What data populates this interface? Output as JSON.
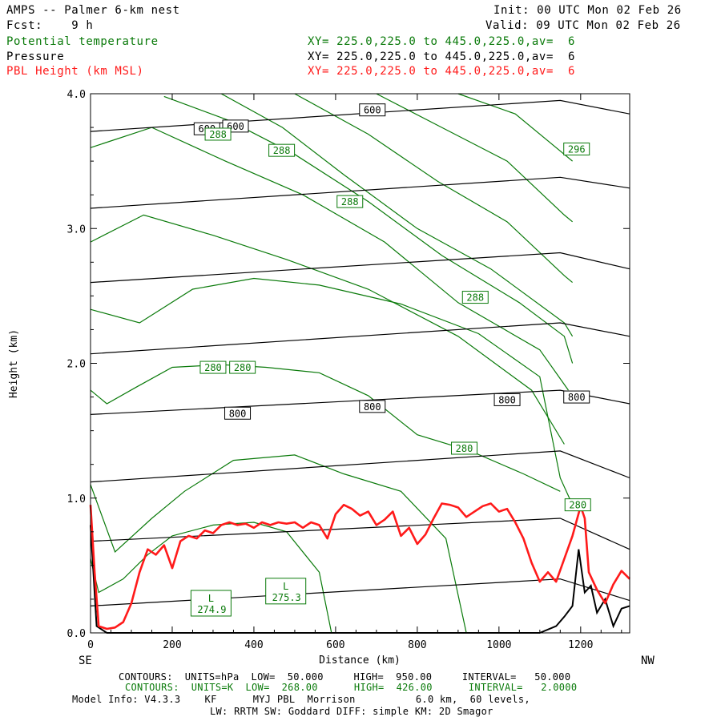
{
  "header": {
    "title": "AMPS -- Palmer 6-km nest",
    "fcst": "Fcst:    9 h",
    "init": "Init: 00 UTC Mon 02 Feb 26",
    "valid": "Valid: 09 UTC Mon 02 Feb 26"
  },
  "fields": [
    {
      "name": "Potential temperature",
      "xy": "XY= 225.0,225.0 to 445.0,225.0,av=  6",
      "color": "#0a7a0a"
    },
    {
      "name": "Pressure",
      "xy": "XY= 225.0,225.0 to 445.0,225.0,av=  6",
      "color": "#000000"
    },
    {
      "name": "PBL Height (km MSL)",
      "xy": "XY= 225.0,225.0 to 445.0,225.0,av=  6",
      "color": "#ff1a1a"
    }
  ],
  "footer": {
    "line1": "CONTOURS:  UNITS=hPa  LOW=  50.000     HIGH=  950.00     INTERVAL=   50.000",
    "line2": "CONTOURS:  UNITS=K  LOW=  268.00      HIGH=  426.00      INTERVAL=   2.0000",
    "line3": "Model Info: V4.3.3    KF      MYJ PBL  Morrison          6.0 km,  60 levels,",
    "line4": "LW: RRTM SW: Goddard DIFF: simple KM: 2D Smagor"
  },
  "chart_data": {
    "type": "line",
    "xlabel": "Distance (km)",
    "ylabel": "Height (km)",
    "xlim": [
      0,
      1320
    ],
    "ylim": [
      0,
      4.0
    ],
    "x_ticks": [
      0,
      200,
      400,
      600,
      800,
      1000,
      1200
    ],
    "x_tick_labels": [
      "0",
      "200",
      "400",
      "600",
      "800",
      "1000",
      "1200"
    ],
    "y_ticks": [
      0,
      1,
      2,
      3,
      4
    ],
    "y_tick_labels": [
      "0.0",
      "1.0",
      "2.0",
      "3.0",
      "4.0"
    ],
    "left_end_label": "SE",
    "right_end_label": "NW",
    "pressure_lines": [
      {
        "x": [
          0,
          1150,
          1320
        ],
        "y": [
          0.2,
          0.4,
          0.24
        ]
      },
      {
        "x": [
          0,
          1150,
          1320
        ],
        "y": [
          0.68,
          0.85,
          0.62
        ]
      },
      {
        "x": [
          0,
          1150,
          1320
        ],
        "y": [
          1.12,
          1.35,
          1.15
        ]
      },
      {
        "x": [
          0,
          1150,
          1320
        ],
        "y": [
          1.62,
          1.8,
          1.7
        ]
      },
      {
        "x": [
          0,
          1150,
          1320
        ],
        "y": [
          2.07,
          2.3,
          2.2
        ]
      },
      {
        "x": [
          0,
          1150,
          1320
        ],
        "y": [
          2.6,
          2.82,
          2.7
        ]
      },
      {
        "x": [
          0,
          1150,
          1320
        ],
        "y": [
          3.15,
          3.38,
          3.3
        ]
      },
      {
        "x": [
          0,
          1150,
          1320
        ],
        "y": [
          3.72,
          3.95,
          3.85
        ]
      }
    ],
    "pressure_labels": [
      {
        "text": "600",
        "x": 285,
        "y": 3.74
      },
      {
        "text": "600",
        "x": 355,
        "y": 3.76
      },
      {
        "text": "600",
        "x": 690,
        "y": 3.88
      },
      {
        "text": "800",
        "x": 360,
        "y": 1.63
      },
      {
        "text": "800",
        "x": 690,
        "y": 1.68
      },
      {
        "text": "800",
        "x": 1020,
        "y": 1.73
      },
      {
        "text": "800",
        "x": 1190,
        "y": 1.75
      }
    ],
    "theta_lines": [
      {
        "x": [
          0,
          20,
          80,
          140,
          200,
          300,
          400,
          480,
          560,
          590
        ],
        "y": [
          0.55,
          0.3,
          0.4,
          0.58,
          0.72,
          0.8,
          0.82,
          0.75,
          0.45,
          0.0
        ]
      },
      {
        "x": [
          0,
          60,
          150,
          230,
          350,
          500,
          620,
          760,
          870,
          920
        ],
        "y": [
          1.1,
          0.6,
          0.85,
          1.05,
          1.28,
          1.32,
          1.18,
          1.05,
          0.7,
          0.0
        ]
      },
      {
        "x": [
          0,
          40,
          110,
          200,
          320,
          430,
          560,
          680,
          800,
          930,
          1060,
          1150
        ],
        "y": [
          1.8,
          1.7,
          1.82,
          1.97,
          1.99,
          1.97,
          1.93,
          1.76,
          1.47,
          1.35,
          1.18,
          1.05
        ]
      },
      {
        "x": [
          0,
          120,
          250,
          400,
          560,
          760,
          950,
          1100,
          1150,
          1180
        ],
        "y": [
          2.4,
          2.3,
          2.55,
          2.63,
          2.58,
          2.44,
          2.22,
          1.9,
          1.15,
          0.95
        ]
      },
      {
        "x": [
          0,
          130,
          300,
          480,
          680,
          900,
          1080,
          1160
        ],
        "y": [
          2.9,
          3.1,
          2.95,
          2.77,
          2.55,
          2.2,
          1.8,
          1.4
        ]
      },
      {
        "x": [
          0,
          150,
          330,
          520,
          720,
          900,
          1100,
          1170
        ],
        "y": [
          3.6,
          3.75,
          3.5,
          3.25,
          2.9,
          2.45,
          2.1,
          1.8
        ]
      },
      {
        "x": [
          180,
          340,
          500,
          680,
          860,
          1050,
          1160,
          1180
        ],
        "y": [
          3.98,
          3.8,
          3.55,
          3.2,
          2.8,
          2.45,
          2.2,
          2.0
        ]
      },
      {
        "x": [
          320,
          470,
          620,
          800,
          980,
          1160,
          1180
        ],
        "y": [
          4.0,
          3.75,
          3.4,
          3.0,
          2.7,
          2.3,
          2.2
        ]
      },
      {
        "x": [
          500,
          680,
          850,
          1020,
          1160,
          1180
        ],
        "y": [
          4.0,
          3.7,
          3.35,
          3.05,
          2.65,
          2.6
        ]
      },
      {
        "x": [
          700,
          860,
          1020,
          1160,
          1180
        ],
        "y": [
          4.0,
          3.75,
          3.5,
          3.1,
          3.05
        ]
      },
      {
        "x": [
          900,
          1040,
          1160,
          1180
        ],
        "y": [
          4.0,
          3.85,
          3.55,
          3.5
        ]
      }
    ],
    "theta_labels": [
      {
        "text": "288",
        "x": 312,
        "y": 3.7
      },
      {
        "text": "288",
        "x": 468,
        "y": 3.58
      },
      {
        "text": "288",
        "x": 635,
        "y": 3.2
      },
      {
        "text": "288",
        "x": 942,
        "y": 2.49
      },
      {
        "text": "296",
        "x": 1190,
        "y": 3.59
      },
      {
        "text": "280",
        "x": 300,
        "y": 1.97
      },
      {
        "text": "280",
        "x": 372,
        "y": 1.97
      },
      {
        "text": "280",
        "x": 915,
        "y": 1.37
      },
      {
        "text": "280",
        "x": 1193,
        "y": 0.95
      }
    ],
    "low_centers": [
      {
        "label": "L",
        "value": "274.9",
        "x": 295,
        "y": 0.22
      },
      {
        "label": "L",
        "value": "275.3",
        "x": 478,
        "y": 0.31
      }
    ],
    "pbl_height": {
      "x": [
        0,
        10,
        20,
        40,
        60,
        80,
        100,
        120,
        140,
        160,
        180,
        200,
        220,
        240,
        260,
        280,
        300,
        320,
        340,
        360,
        380,
        400,
        420,
        440,
        460,
        480,
        500,
        520,
        540,
        560,
        580,
        600,
        620,
        640,
        660,
        680,
        700,
        720,
        740,
        760,
        780,
        800,
        820,
        840,
        860,
        880,
        900,
        920,
        940,
        960,
        980,
        1000,
        1020,
        1040,
        1060,
        1080,
        1100,
        1120,
        1140,
        1160,
        1180,
        1200,
        1210,
        1220,
        1240,
        1260,
        1280,
        1300,
        1320
      ],
      "y": [
        0.95,
        0.45,
        0.05,
        0.03,
        0.04,
        0.08,
        0.22,
        0.45,
        0.62,
        0.58,
        0.65,
        0.48,
        0.68,
        0.72,
        0.7,
        0.76,
        0.74,
        0.8,
        0.82,
        0.8,
        0.81,
        0.78,
        0.82,
        0.8,
        0.82,
        0.81,
        0.82,
        0.78,
        0.82,
        0.8,
        0.7,
        0.88,
        0.95,
        0.92,
        0.87,
        0.9,
        0.8,
        0.84,
        0.9,
        0.72,
        0.78,
        0.66,
        0.73,
        0.85,
        0.96,
        0.95,
        0.93,
        0.86,
        0.9,
        0.94,
        0.96,
        0.9,
        0.92,
        0.82,
        0.7,
        0.52,
        0.38,
        0.45,
        0.38,
        0.55,
        0.72,
        0.94,
        0.85,
        0.45,
        0.32,
        0.22,
        0.36,
        0.46,
        0.4
      ]
    },
    "terrain": {
      "x": [
        0,
        15,
        40,
        80,
        150,
        300,
        600,
        900,
        1100,
        1140,
        1160,
        1180,
        1195,
        1210,
        1225,
        1240,
        1260,
        1280,
        1300,
        1320
      ],
      "y": [
        0.8,
        0.05,
        0.0,
        0.0,
        0.0,
        0.0,
        0.0,
        0.0,
        0.0,
        0.05,
        0.12,
        0.2,
        0.62,
        0.3,
        0.35,
        0.15,
        0.25,
        0.05,
        0.18,
        0.2
      ]
    }
  }
}
